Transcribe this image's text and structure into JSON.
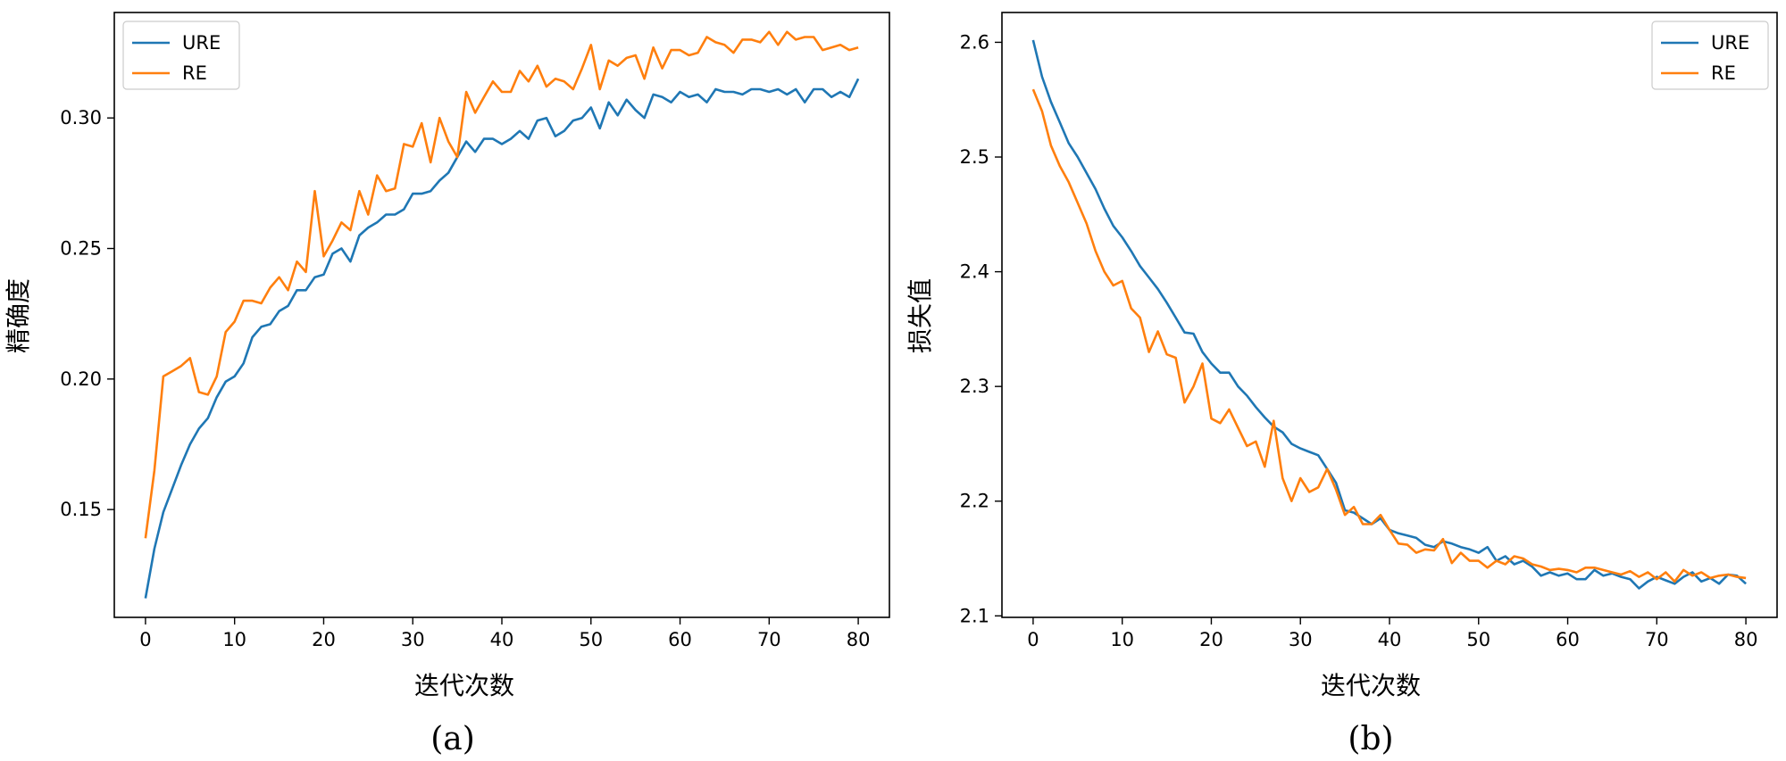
{
  "colors": {
    "URE": "#1f77b4",
    "RE": "#ff7f0e"
  },
  "chart_data": [
    {
      "type": "line",
      "caption": "(a)",
      "xlabel": "迭代次数",
      "ylabel": "精确度",
      "xlim": [
        -3.5,
        83.5
      ],
      "ylim": [
        0.1087,
        0.3404
      ],
      "xticks": [
        0,
        10,
        20,
        30,
        40,
        50,
        60,
        70,
        80
      ],
      "yticks": [
        0.15,
        0.2,
        0.25,
        0.3
      ],
      "ytick_labels": [
        "0.15",
        "0.20",
        "0.25",
        "0.30"
      ],
      "legend": "top-left",
      "x": [
        0,
        1,
        2,
        3,
        4,
        5,
        6,
        7,
        8,
        9,
        10,
        11,
        12,
        13,
        14,
        15,
        16,
        17,
        18,
        19,
        20,
        21,
        22,
        23,
        24,
        25,
        26,
        27,
        28,
        29,
        30,
        31,
        32,
        33,
        34,
        35,
        36,
        37,
        38,
        39,
        40,
        41,
        42,
        43,
        44,
        45,
        46,
        47,
        48,
        49,
        50,
        51,
        52,
        53,
        54,
        55,
        56,
        57,
        58,
        59,
        60,
        61,
        62,
        63,
        64,
        65,
        66,
        67,
        68,
        69,
        70,
        71,
        72,
        73,
        74,
        75,
        76,
        77,
        78,
        79,
        80
      ],
      "series": [
        {
          "name": "URE",
          "values": [
            0.116,
            0.135,
            0.149,
            0.158,
            0.167,
            0.175,
            0.181,
            0.185,
            0.193,
            0.199,
            0.201,
            0.206,
            0.216,
            0.22,
            0.221,
            0.226,
            0.228,
            0.234,
            0.234,
            0.239,
            0.24,
            0.248,
            0.25,
            0.245,
            0.255,
            0.258,
            0.26,
            0.263,
            0.263,
            0.265,
            0.271,
            0.271,
            0.272,
            0.276,
            0.279,
            0.285,
            0.291,
            0.287,
            0.292,
            0.292,
            0.29,
            0.292,
            0.295,
            0.292,
            0.299,
            0.3,
            0.293,
            0.295,
            0.299,
            0.3,
            0.304,
            0.296,
            0.306,
            0.301,
            0.307,
            0.303,
            0.3,
            0.309,
            0.308,
            0.306,
            0.31,
            0.308,
            0.309,
            0.306,
            0.311,
            0.31,
            0.31,
            0.309,
            0.311,
            0.311,
            0.31,
            0.311,
            0.309,
            0.311,
            0.306,
            0.311,
            0.311,
            0.308,
            0.31,
            0.308,
            0.315
          ]
        },
        {
          "name": "RE",
          "values": [
            0.139,
            0.165,
            0.201,
            0.203,
            0.205,
            0.208,
            0.195,
            0.194,
            0.201,
            0.218,
            0.222,
            0.23,
            0.23,
            0.229,
            0.235,
            0.239,
            0.234,
            0.245,
            0.241,
            0.272,
            0.247,
            0.253,
            0.26,
            0.257,
            0.272,
            0.263,
            0.278,
            0.272,
            0.273,
            0.29,
            0.289,
            0.298,
            0.283,
            0.3,
            0.291,
            0.285,
            0.31,
            0.302,
            0.308,
            0.314,
            0.31,
            0.31,
            0.318,
            0.314,
            0.32,
            0.312,
            0.315,
            0.314,
            0.311,
            0.319,
            0.328,
            0.311,
            0.322,
            0.32,
            0.323,
            0.324,
            0.315,
            0.327,
            0.319,
            0.326,
            0.326,
            0.324,
            0.325,
            0.331,
            0.329,
            0.328,
            0.325,
            0.33,
            0.33,
            0.329,
            0.333,
            0.328,
            0.333,
            0.33,
            0.331,
            0.331,
            0.326,
            0.327,
            0.328,
            0.326,
            0.327
          ]
        }
      ]
    },
    {
      "type": "line",
      "caption": "(b)",
      "xlabel": "迭代次数",
      "ylabel": "损失值",
      "xlim": [
        -3.5,
        83.5
      ],
      "ylim": [
        2.0987,
        2.626
      ],
      "xticks": [
        0,
        10,
        20,
        30,
        40,
        50,
        60,
        70,
        80
      ],
      "yticks": [
        2.1,
        2.2,
        2.3,
        2.4,
        2.5,
        2.6
      ],
      "ytick_labels": [
        "2.1",
        "2.2",
        "2.3",
        "2.4",
        "2.5",
        "2.6"
      ],
      "legend": "top-right",
      "x": [
        0,
        1,
        2,
        3,
        4,
        5,
        6,
        7,
        8,
        9,
        10,
        11,
        12,
        13,
        14,
        15,
        16,
        17,
        18,
        19,
        20,
        21,
        22,
        23,
        24,
        25,
        26,
        27,
        28,
        29,
        30,
        31,
        32,
        33,
        34,
        35,
        36,
        37,
        38,
        39,
        40,
        41,
        42,
        43,
        44,
        45,
        46,
        47,
        48,
        49,
        50,
        51,
        52,
        53,
        54,
        55,
        56,
        57,
        58,
        59,
        60,
        61,
        62,
        63,
        64,
        65,
        66,
        67,
        68,
        69,
        70,
        71,
        72,
        73,
        74,
        75,
        76,
        77,
        78,
        79,
        80
      ],
      "series": [
        {
          "name": "URE",
          "values": [
            2.602,
            2.57,
            2.548,
            2.53,
            2.512,
            2.5,
            2.486,
            2.472,
            2.455,
            2.44,
            2.43,
            2.418,
            2.405,
            2.395,
            2.385,
            2.373,
            2.36,
            2.347,
            2.346,
            2.33,
            2.32,
            2.312,
            2.312,
            2.3,
            2.292,
            2.282,
            2.273,
            2.265,
            2.26,
            2.25,
            2.246,
            2.243,
            2.24,
            2.228,
            2.216,
            2.192,
            2.19,
            2.185,
            2.18,
            2.185,
            2.175,
            2.172,
            2.17,
            2.168,
            2.162,
            2.16,
            2.165,
            2.163,
            2.16,
            2.158,
            2.155,
            2.16,
            2.148,
            2.152,
            2.145,
            2.148,
            2.143,
            2.135,
            2.138,
            2.135,
            2.137,
            2.132,
            2.132,
            2.14,
            2.135,
            2.137,
            2.134,
            2.132,
            2.124,
            2.13,
            2.134,
            2.131,
            2.128,
            2.134,
            2.138,
            2.13,
            2.133,
            2.128,
            2.136,
            2.135,
            2.128
          ]
        },
        {
          "name": "RE",
          "values": [
            2.559,
            2.54,
            2.51,
            2.492,
            2.478,
            2.46,
            2.442,
            2.418,
            2.4,
            2.388,
            2.392,
            2.368,
            2.36,
            2.33,
            2.348,
            2.328,
            2.325,
            2.286,
            2.3,
            2.32,
            2.272,
            2.268,
            2.28,
            2.264,
            2.248,
            2.252,
            2.23,
            2.27,
            2.22,
            2.2,
            2.22,
            2.208,
            2.212,
            2.228,
            2.21,
            2.188,
            2.195,
            2.18,
            2.18,
            2.188,
            2.175,
            2.163,
            2.162,
            2.155,
            2.158,
            2.157,
            2.167,
            2.146,
            2.155,
            2.148,
            2.148,
            2.142,
            2.148,
            2.145,
            2.152,
            2.15,
            2.145,
            2.143,
            2.14,
            2.141,
            2.14,
            2.138,
            2.142,
            2.142,
            2.14,
            2.138,
            2.136,
            2.139,
            2.134,
            2.138,
            2.132,
            2.138,
            2.13,
            2.14,
            2.135,
            2.138,
            2.133,
            2.135,
            2.136,
            2.134,
            2.133
          ]
        }
      ]
    }
  ]
}
